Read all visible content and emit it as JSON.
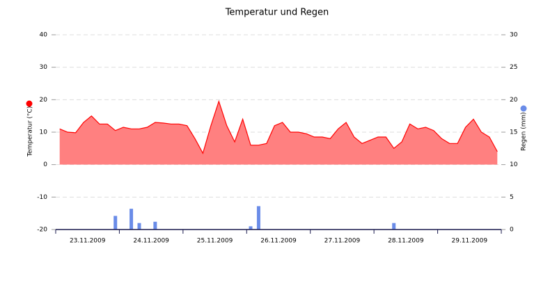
{
  "chart_data": {
    "type": "line",
    "title": "Temperatur und Regen",
    "categories": [
      null,
      null,
      null,
      null,
      "23.11.2009",
      null,
      null,
      null,
      null,
      null,
      null,
      null,
      "24.11.2009",
      null,
      null,
      null,
      null,
      null,
      null,
      null,
      "25.11.2009",
      null,
      null,
      null,
      null,
      null,
      null,
      null,
      "26.11.2009",
      null,
      null,
      null,
      null,
      null,
      null,
      null,
      "27.11.2009",
      null,
      null,
      null,
      null,
      null,
      null,
      null,
      "28.11.2009",
      null,
      null,
      null,
      null,
      null,
      null,
      null,
      "29.11.2009",
      null,
      null,
      null
    ],
    "series": [
      {
        "name": "Temperatur (°C)",
        "type": "area",
        "color": "#ff0000",
        "fill": "#ff8080",
        "values": [
          11,
          10,
          9.8,
          13,
          15,
          12.5,
          12.5,
          10.5,
          11.5,
          11,
          11,
          11.5,
          13,
          12.8,
          12.5,
          12.5,
          12,
          8,
          3.5,
          12,
          19.5,
          12,
          7,
          14,
          6,
          6,
          6.5,
          12,
          13,
          10,
          10,
          9.5,
          8.5,
          8.5,
          8,
          11,
          13,
          8.5,
          6.5,
          7.5,
          8.5,
          8.5,
          5,
          7,
          12.5,
          11,
          11.5,
          10.5,
          8,
          6.5,
          6.5,
          11.5,
          14,
          10,
          8.5,
          4
        ]
      },
      {
        "name": "Regen (mm)",
        "type": "bar",
        "axis": "y2",
        "color": "#6a8ce8",
        "values": [
          null,
          null,
          null,
          null,
          null,
          null,
          null,
          2.1,
          null,
          3.2,
          1.0,
          null,
          1.2,
          null,
          null,
          null,
          null,
          null,
          null,
          null,
          null,
          null,
          null,
          null,
          0.5,
          3.6,
          null,
          null,
          null,
          null,
          null,
          null,
          null,
          null,
          null,
          null,
          null,
          null,
          null,
          null,
          null,
          null,
          1.0,
          null,
          null,
          null,
          null,
          null,
          null,
          null,
          null,
          null,
          null,
          null,
          null,
          null
        ]
      }
    ],
    "ylim": [
      -20,
      40
    ],
    "yticks": [
      -20,
      -10,
      0,
      10,
      20,
      30,
      40
    ],
    "y2lim": [
      0,
      30
    ],
    "y2ticks": [
      0,
      5,
      10,
      15,
      20,
      25,
      30
    ],
    "grid": true
  }
}
